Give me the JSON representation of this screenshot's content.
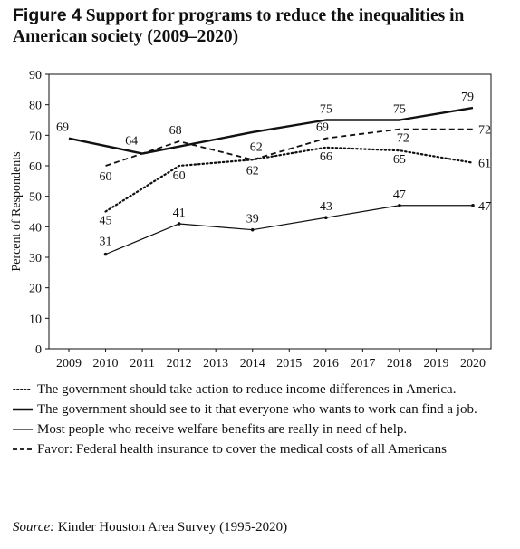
{
  "figure": {
    "label": "Figure 4",
    "title": "Support for programs to reduce the inequalities in American society (2009–2020)"
  },
  "source": {
    "label": "Source:",
    "text": "Kinder Houston Area Survey (1995-2020)"
  },
  "chart_data": {
    "type": "line",
    "ylabel": "Percent of Respondents",
    "xlabel": "",
    "ylim": [
      0,
      90
    ],
    "yticks": [
      0,
      10,
      20,
      30,
      40,
      50,
      60,
      70,
      80,
      90
    ],
    "xticks": [
      2009,
      2010,
      2011,
      2012,
      2013,
      2014,
      2015,
      2016,
      2017,
      2018,
      2019,
      2020
    ],
    "xlim": [
      2009,
      2020
    ],
    "grid": false,
    "legend_position": "bottom",
    "series": [
      {
        "name": "The government should take action to reduce income differences in America.",
        "style": "dotted",
        "x": [
          2010,
          2012,
          2014,
          2016,
          2018,
          2020
        ],
        "values": [
          45,
          60,
          62,
          66,
          65,
          61
        ]
      },
      {
        "name": "The government should see to it that everyone who wants to work can find a job.",
        "style": "solid-thick",
        "x": [
          2009,
          2011,
          2014,
          2016,
          2018,
          2020
        ],
        "values": [
          69,
          64,
          71,
          75,
          75,
          79
        ]
      },
      {
        "name": "Most people who receive welfare benefits are really in need of help.",
        "style": "solid-thin",
        "x": [
          2010,
          2012,
          2014,
          2016,
          2018,
          2020
        ],
        "values": [
          31,
          41,
          39,
          43,
          47,
          47
        ]
      },
      {
        "name": "Favor: Federal health insurance to cover the medical costs of all Americans",
        "style": "dashed",
        "x": [
          2010,
          2012,
          2014,
          2016,
          2018,
          2020
        ],
        "values": [
          60,
          68,
          62,
          69,
          72,
          72
        ]
      }
    ],
    "data_labels": [
      {
        "x": 2009,
        "y": 69,
        "text": "69",
        "series": 1
      },
      {
        "x": 2011,
        "y": 64,
        "text": "64",
        "series": 1
      },
      {
        "x": 2016,
        "y": 75,
        "text": "75",
        "series": 1
      },
      {
        "x": 2018,
        "y": 75,
        "text": "75",
        "series": 1
      },
      {
        "x": 2020,
        "y": 79,
        "text": "79",
        "series": 1
      },
      {
        "x": 2010,
        "y": 60,
        "text": "60",
        "series": 3
      },
      {
        "x": 2012,
        "y": 68,
        "text": "68",
        "series": 3
      },
      {
        "x": 2014,
        "y": 62,
        "text": "62",
        "series": 3
      },
      {
        "x": 2016,
        "y": 69,
        "text": "69",
        "series": 3
      },
      {
        "x": 2018,
        "y": 72,
        "text": "72",
        "series": 3
      },
      {
        "x": 2020,
        "y": 72,
        "text": "72",
        "series": 3
      },
      {
        "x": 2010,
        "y": 45,
        "text": "45",
        "series": 0
      },
      {
        "x": 2012,
        "y": 60,
        "text": "60",
        "series": 0
      },
      {
        "x": 2014,
        "y": 62,
        "text": "62",
        "series": 0
      },
      {
        "x": 2016,
        "y": 66,
        "text": "66",
        "series": 0
      },
      {
        "x": 2018,
        "y": 65,
        "text": "65",
        "series": 0
      },
      {
        "x": 2020,
        "y": 61,
        "text": "61",
        "series": 0
      },
      {
        "x": 2010,
        "y": 31,
        "text": "31",
        "series": 2
      },
      {
        "x": 2012,
        "y": 41,
        "text": "41",
        "series": 2
      },
      {
        "x": 2014,
        "y": 39,
        "text": "39",
        "series": 2
      },
      {
        "x": 2016,
        "y": 43,
        "text": "43",
        "series": 2
      },
      {
        "x": 2018,
        "y": 47,
        "text": "47",
        "series": 2
      },
      {
        "x": 2020,
        "y": 47,
        "text": "47",
        "series": 2
      }
    ]
  }
}
